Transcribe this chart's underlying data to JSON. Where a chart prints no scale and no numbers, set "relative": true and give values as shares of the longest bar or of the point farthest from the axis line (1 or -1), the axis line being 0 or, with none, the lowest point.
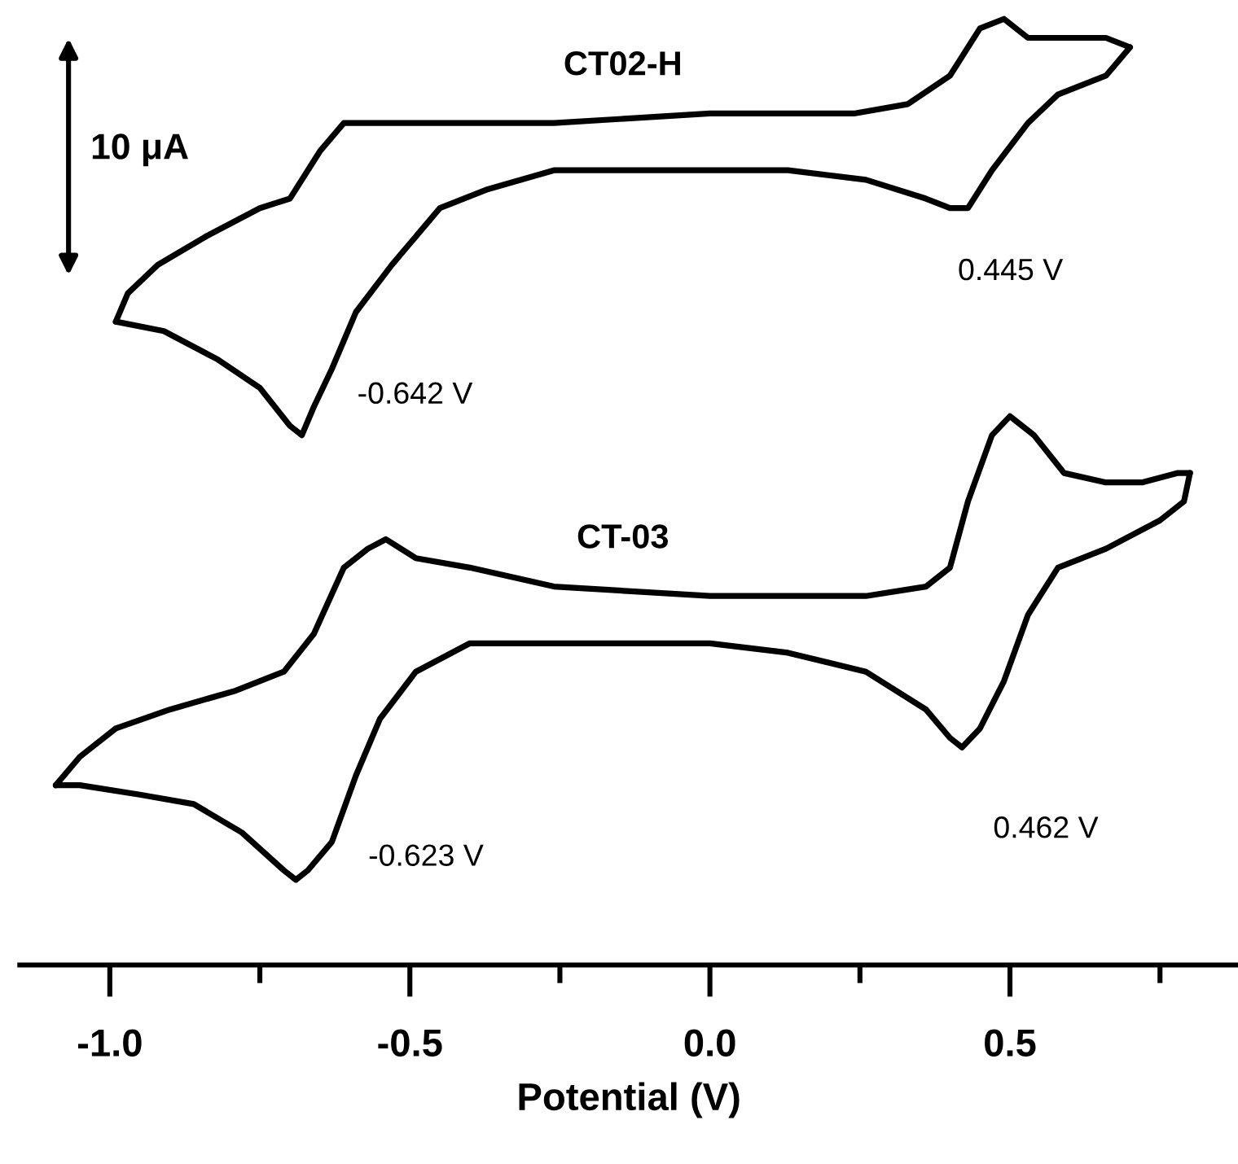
{
  "chart_data": {
    "type": "line",
    "xlabel": "Potential (V)",
    "relative": true,
    "tick_labels": "x",
    "grid": false,
    "legend": false,
    "marker": "none",
    "line_style": "solid",
    "xlim": [
      -1.15,
      0.88
    ],
    "xticks": [
      {
        "value": -1.0,
        "label": "-1.0"
      },
      {
        "value": -0.75,
        "label": null
      },
      {
        "value": -0.5,
        "label": "-0.5"
      },
      {
        "value": -0.25,
        "label": null
      },
      {
        "value": 0.0,
        "label": "0.0"
      },
      {
        "value": 0.25,
        "label": null
      },
      {
        "value": 0.5,
        "label": "0.5"
      },
      {
        "value": 0.75,
        "label": null
      }
    ],
    "series": [
      {
        "name": "CT02-H",
        "color": "#000000",
        "x": [
          -0.99,
          -0.97,
          -0.92,
          -0.84,
          -0.75,
          -0.7,
          -0.65,
          -0.61,
          -0.5,
          -0.26,
          0.0,
          0.24,
          0.33,
          0.4,
          0.45,
          0.49,
          0.53,
          0.58,
          0.66,
          0.7
        ],
        "values": [
          0.68,
          0.71,
          0.74,
          0.77,
          0.8,
          0.81,
          0.86,
          0.89,
          0.89,
          0.89,
          0.9,
          0.9,
          0.91,
          0.94,
          0.99,
          1.0,
          0.98,
          0.98,
          0.98,
          0.97
        ]
      },
      {
        "color": "#000000",
        "x": [
          -0.99,
          -0.91,
          -0.82,
          -0.75,
          -0.7,
          -0.68,
          -0.66,
          -0.63,
          -0.59,
          -0.53,
          -0.45,
          -0.37,
          -0.26,
          0.0,
          0.13,
          0.26,
          0.36,
          0.4,
          0.43,
          0.47,
          0.53,
          0.58,
          0.66,
          0.7
        ],
        "values": [
          0.68,
          0.67,
          0.64,
          0.61,
          0.57,
          0.56,
          0.59,
          0.63,
          0.69,
          0.74,
          0.8,
          0.82,
          0.84,
          0.84,
          0.84,
          0.83,
          0.81,
          0.8,
          0.8,
          0.84,
          0.89,
          0.92,
          0.94,
          0.97
        ]
      },
      {
        "name": "CT-03",
        "color": "#000000",
        "x": [
          -1.09,
          -1.05,
          -0.99,
          -0.9,
          -0.79,
          -0.71,
          -0.66,
          -0.61,
          -0.57,
          -0.54,
          -0.49,
          -0.4,
          -0.26,
          0.0,
          0.26,
          0.36,
          0.4,
          0.43,
          0.47,
          0.5,
          0.54,
          0.59,
          0.66,
          0.72,
          0.78,
          0.8
        ],
        "values": [
          0.19,
          0.22,
          0.25,
          0.27,
          0.29,
          0.31,
          0.35,
          0.42,
          0.44,
          0.45,
          0.43,
          0.42,
          0.4,
          0.39,
          0.39,
          0.4,
          0.42,
          0.49,
          0.56,
          0.58,
          0.56,
          0.52,
          0.51,
          0.51,
          0.52,
          0.52
        ]
      },
      {
        "color": "#000000",
        "x": [
          -1.09,
          -1.05,
          -0.95,
          -0.86,
          -0.78,
          -0.71,
          -0.69,
          -0.67,
          -0.63,
          -0.59,
          -0.55,
          -0.49,
          -0.4,
          -0.26,
          0.0,
          0.13,
          0.26,
          0.36,
          0.4,
          0.42,
          0.45,
          0.49,
          0.53,
          0.58,
          0.66,
          0.75,
          0.79,
          0.8
        ],
        "values": [
          0.19,
          0.19,
          0.18,
          0.17,
          0.14,
          0.1,
          0.09,
          0.1,
          0.13,
          0.2,
          0.26,
          0.31,
          0.34,
          0.34,
          0.34,
          0.33,
          0.31,
          0.27,
          0.24,
          0.23,
          0.25,
          0.3,
          0.37,
          0.42,
          0.44,
          0.47,
          0.49,
          0.52
        ]
      }
    ],
    "annotations": [
      "10 μA",
      "-0.642 V",
      "0.445 V",
      "-0.623 V",
      "0.462 V"
    ]
  }
}
